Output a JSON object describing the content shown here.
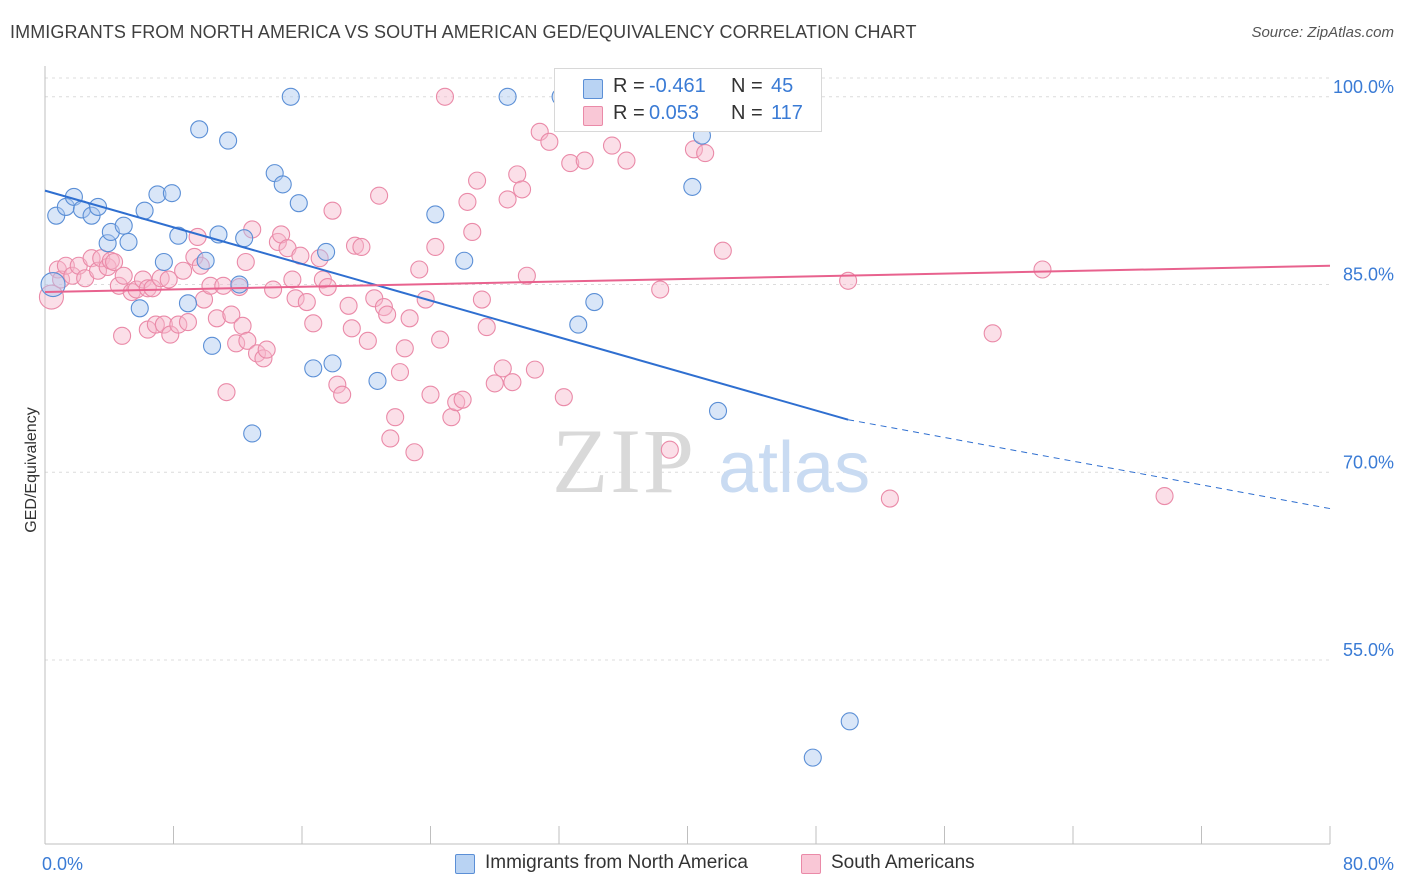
{
  "title": "IMMIGRANTS FROM NORTH AMERICA VS SOUTH AMERICAN GED/EQUIVALENCY CORRELATION CHART",
  "source": "Source: ZipAtlas.com",
  "watermark": {
    "zip": "ZIP",
    "atlas": "atlas"
  },
  "legend": {
    "r_label": "R =",
    "n_label": "N =",
    "series": [
      {
        "r": "-0.461",
        "n": "45"
      },
      {
        "r": "0.053",
        "n": "117"
      }
    ]
  },
  "colors": {
    "blue_fill": "#aac8f0",
    "blue_stroke": "#5b8fd6",
    "blue_line": "#2f6fd0",
    "pink_fill": "#f7b8cc",
    "pink_stroke": "#ea8aa8",
    "pink_line": "#e8628e",
    "axis_text": "#3a7bd5"
  },
  "chart_data": {
    "type": "scatter",
    "title": "IMMIGRANTS FROM NORTH AMERICA VS SOUTH AMERICAN GED/EQUIVALENCY CORRELATION CHART",
    "xlabel": "",
    "ylabel": "GED/Equivalency",
    "xlim": [
      0,
      80
    ],
    "ylim": [
      40.3,
      101.5
    ],
    "x_tick_labels": [
      "0.0%",
      "80.0%"
    ],
    "y_ticks": [
      55,
      70,
      85,
      100
    ],
    "y_tick_labels": [
      "55.0%",
      "70.0%",
      "85.0%",
      "100.0%"
    ],
    "grid": true,
    "legend_position": "top-center",
    "series": [
      {
        "name": "Immigrants from North America",
        "r": -0.461,
        "n": 45,
        "trend": {
          "x0": 0,
          "y0": 92.5,
          "x1": 50,
          "y1": 74.2,
          "dash_to_x": 80,
          "dash_to_y": 67.1
        },
        "points": [
          [
            0.5,
            85
          ],
          [
            0.7,
            90.5
          ],
          [
            1.3,
            91.2
          ],
          [
            1.8,
            92
          ],
          [
            2.3,
            91
          ],
          [
            2.9,
            90.5
          ],
          [
            3.3,
            91.2
          ],
          [
            3.9,
            88.3
          ],
          [
            4.1,
            89.2
          ],
          [
            4.9,
            89.7
          ],
          [
            5.2,
            88.4
          ],
          [
            5.9,
            83.1
          ],
          [
            6.2,
            90.9
          ],
          [
            7.0,
            92.2
          ],
          [
            7.4,
            86.8
          ],
          [
            7.9,
            92.3
          ],
          [
            8.3,
            88.9
          ],
          [
            8.9,
            83.5
          ],
          [
            9.6,
            97.4
          ],
          [
            10.0,
            86.9
          ],
          [
            10.4,
            80.1
          ],
          [
            10.8,
            89.0
          ],
          [
            11.4,
            96.5
          ],
          [
            12.1,
            85
          ],
          [
            12.4,
            88.7
          ],
          [
            12.9,
            73.1
          ],
          [
            14.3,
            93.9
          ],
          [
            14.8,
            93.0
          ],
          [
            15.3,
            100
          ],
          [
            15.8,
            91.5
          ],
          [
            16.7,
            78.3
          ],
          [
            17.5,
            87.6
          ],
          [
            17.9,
            78.7
          ],
          [
            20.7,
            77.3
          ],
          [
            24.3,
            90.6
          ],
          [
            26.1,
            86.9
          ],
          [
            28.8,
            100
          ],
          [
            32.1,
            100
          ],
          [
            33.2,
            81.8
          ],
          [
            34.2,
            83.6
          ],
          [
            40.3,
            92.8
          ],
          [
            40.9,
            96.9
          ],
          [
            41.9,
            74.9
          ],
          [
            50.1,
            50.1
          ],
          [
            47.8,
            47.2
          ]
        ]
      },
      {
        "name": "South Americans",
        "r": 0.053,
        "n": 117,
        "trend": {
          "x0": 0,
          "y0": 84.4,
          "x1": 80,
          "y1": 86.5
        },
        "points": [
          [
            0.4,
            84.0
          ],
          [
            0.8,
            86.2
          ],
          [
            1.0,
            85.4
          ],
          [
            1.3,
            86.5
          ],
          [
            1.7,
            85.7
          ],
          [
            2.1,
            86.5
          ],
          [
            2.5,
            85.5
          ],
          [
            2.9,
            87.1
          ],
          [
            3.3,
            86.1
          ],
          [
            3.5,
            87.1
          ],
          [
            3.9,
            86.4
          ],
          [
            4.1,
            86.9
          ],
          [
            4.3,
            86.8
          ],
          [
            4.6,
            84.9
          ],
          [
            4.9,
            85.7
          ],
          [
            4.8,
            80.9
          ],
          [
            5.4,
            84.4
          ],
          [
            5.7,
            84.6
          ],
          [
            6.1,
            85.4
          ],
          [
            6.4,
            84.7
          ],
          [
            6.7,
            84.7
          ],
          [
            6.4,
            81.4
          ],
          [
            6.9,
            81.8
          ],
          [
            7.2,
            85.5
          ],
          [
            7.4,
            81.8
          ],
          [
            7.7,
            85.4
          ],
          [
            7.8,
            81.0
          ],
          [
            8.3,
            81.8
          ],
          [
            8.6,
            86.1
          ],
          [
            8.9,
            82.0
          ],
          [
            9.3,
            87.2
          ],
          [
            9.5,
            88.8
          ],
          [
            9.7,
            86.5
          ],
          [
            9.9,
            83.8
          ],
          [
            10.3,
            84.9
          ],
          [
            10.7,
            82.3
          ],
          [
            11.1,
            84.9
          ],
          [
            11.3,
            76.4
          ],
          [
            11.6,
            82.6
          ],
          [
            11.9,
            80.3
          ],
          [
            12.1,
            84.8
          ],
          [
            12.5,
            86.8
          ],
          [
            12.3,
            81.7
          ],
          [
            12.6,
            80.5
          ],
          [
            12.9,
            89.4
          ],
          [
            13.2,
            79.5
          ],
          [
            13.6,
            79.1
          ],
          [
            13.8,
            79.8
          ],
          [
            14.2,
            84.6
          ],
          [
            14.5,
            88.4
          ],
          [
            14.7,
            89.0
          ],
          [
            15.1,
            87.9
          ],
          [
            15.4,
            85.4
          ],
          [
            15.6,
            83.9
          ],
          [
            15.9,
            87.3
          ],
          [
            16.3,
            83.6
          ],
          [
            16.7,
            81.9
          ],
          [
            17.1,
            87.1
          ],
          [
            17.3,
            85.4
          ],
          [
            17.6,
            84.8
          ],
          [
            17.9,
            90.9
          ],
          [
            18.2,
            77.0
          ],
          [
            18.5,
            76.2
          ],
          [
            18.9,
            83.3
          ],
          [
            19.1,
            81.5
          ],
          [
            19.3,
            88.1
          ],
          [
            19.7,
            88.0
          ],
          [
            20.1,
            80.5
          ],
          [
            20.5,
            83.9
          ],
          [
            20.8,
            92.1
          ],
          [
            21.1,
            83.2
          ],
          [
            21.3,
            82.6
          ],
          [
            21.5,
            72.7
          ],
          [
            21.8,
            74.4
          ],
          [
            22.1,
            78.0
          ],
          [
            22.4,
            79.9
          ],
          [
            22.7,
            82.3
          ],
          [
            23.0,
            71.6
          ],
          [
            23.3,
            86.2
          ],
          [
            23.7,
            83.8
          ],
          [
            24.0,
            76.2
          ],
          [
            24.3,
            88.0
          ],
          [
            24.6,
            80.6
          ],
          [
            24.9,
            100
          ],
          [
            25.3,
            74.4
          ],
          [
            25.6,
            75.6
          ],
          [
            26.0,
            75.8
          ],
          [
            26.3,
            91.6
          ],
          [
            26.6,
            89.2
          ],
          [
            26.9,
            93.3
          ],
          [
            27.2,
            83.8
          ],
          [
            27.5,
            81.6
          ],
          [
            28.0,
            77.1
          ],
          [
            28.5,
            78.3
          ],
          [
            28.8,
            91.8
          ],
          [
            29.1,
            77.2
          ],
          [
            29.4,
            93.8
          ],
          [
            29.7,
            92.6
          ],
          [
            30.0,
            85.7
          ],
          [
            30.5,
            78.2
          ],
          [
            30.8,
            97.2
          ],
          [
            31.4,
            96.4
          ],
          [
            32.3,
            76.0
          ],
          [
            32.7,
            94.7
          ],
          [
            33.6,
            94.9
          ],
          [
            34.2,
            100
          ],
          [
            35.3,
            96.1
          ],
          [
            36.2,
            94.9
          ],
          [
            37.0,
            100
          ],
          [
            38.3,
            84.6
          ],
          [
            38.9,
            71.8
          ],
          [
            40.4,
            95.8
          ],
          [
            41.1,
            95.5
          ],
          [
            42.2,
            87.7
          ],
          [
            50.0,
            85.3
          ],
          [
            52.6,
            67.9
          ],
          [
            59.0,
            81.1
          ],
          [
            62.1,
            86.2
          ],
          [
            69.7,
            68.1
          ]
        ]
      }
    ]
  }
}
